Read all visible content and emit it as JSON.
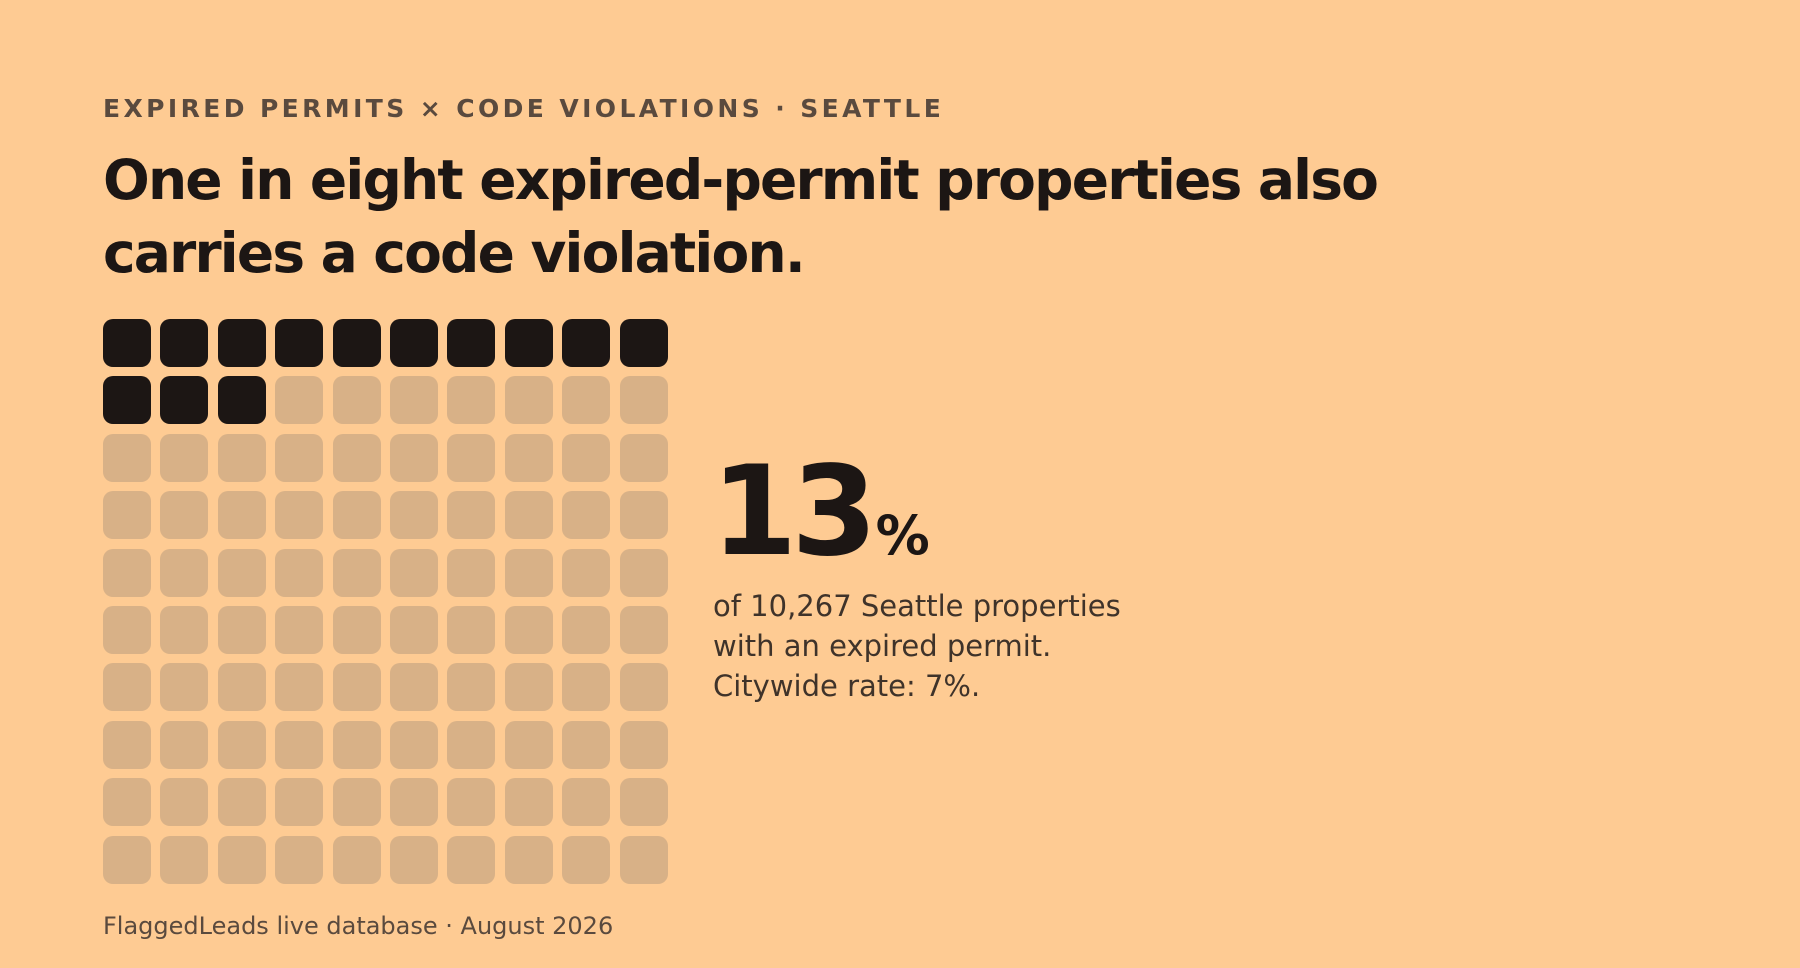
{
  "kicker": "EXPIRED PERMITS × CODE VIOLATIONS · SEATTLE",
  "headline": "One in eight expired-permit properties also carries a code violation.",
  "stat": {
    "value": "13",
    "unit": "%",
    "description": "of 10,267 Seattle properties with an expired permit. Citywide rate: 7%."
  },
  "source": "FlaggedLeads live database · August 2026",
  "colors": {
    "background": "#FECB93",
    "filled": "#1C1614",
    "empty": "#D8B187"
  },
  "chart_data": {
    "type": "waffle",
    "rows": 10,
    "columns": 10,
    "total": 100,
    "filled": 13,
    "percent": 13,
    "base_count": 10267,
    "citywide_rate_percent": 7
  }
}
